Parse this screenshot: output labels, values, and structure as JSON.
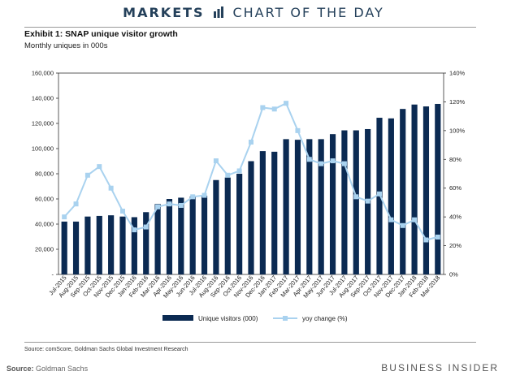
{
  "header": {
    "markets": "MARKETS",
    "chart_of_the_day": "CHART OF THE DAY"
  },
  "exhibit": {
    "title": "Exhibit 1: SNAP unique visitor growth",
    "subtitle": "Monthly uniques in 000s"
  },
  "source_line": "Source: comScore, Goldman Sachs Global Investment Research",
  "footer": {
    "source_label": "Source:",
    "source_name": "Goldman Sachs",
    "brand": "BUSINESS INSIDER"
  },
  "colors": {
    "bar": "#0b2a52",
    "line": "#a9d2ef",
    "banner": "#24405a"
  },
  "chart_data": {
    "type": "bar",
    "categories": [
      "Jul-2015",
      "Aug-2015",
      "Sep-2015",
      "Oct-2015",
      "Nov-2015",
      "Dec-2015",
      "Jan-2016",
      "Feb-2016",
      "Mar-2016",
      "Apr-2016",
      "May-2016",
      "Jun-2016",
      "Jul-2016",
      "Aug-2016",
      "Sep-2016",
      "Oct-2016",
      "Nov-2016",
      "Dec-2016",
      "Jan-2017",
      "Feb-2017",
      "Mar-2017",
      "Apr-2017",
      "May-2017",
      "Jun-2017",
      "Jul-2017",
      "Aug-2017",
      "Sep-2017",
      "Oct-2017",
      "Nov-2017",
      "Dec-2017",
      "Jan-2018",
      "Feb-2018",
      "Mar-2018"
    ],
    "series": [
      {
        "name": "Unique visitors (000)",
        "type": "bar",
        "axis": "left",
        "values": [
          42000,
          42000,
          46000,
          46500,
          47000,
          46000,
          45500,
          49500,
          56000,
          60000,
          61000,
          62000,
          62500,
          75000,
          77000,
          80000,
          90000,
          98000,
          97500,
          107500,
          107000,
          107500,
          107500,
          111500,
          114500,
          114500,
          115500,
          124500,
          124000,
          131500,
          135000,
          133500,
          135500
        ]
      },
      {
        "name": "yoy change (%)",
        "type": "line",
        "axis": "right",
        "values": [
          40,
          49,
          69,
          75,
          60,
          44,
          31,
          33,
          47,
          49,
          48,
          54,
          55,
          79,
          69,
          72,
          92,
          116,
          115,
          119,
          100,
          80,
          77,
          79,
          77,
          54,
          51,
          56,
          38,
          34,
          38,
          24,
          26
        ]
      }
    ],
    "yleft": {
      "min": 0,
      "max": 160000,
      "ticks": [
        "-",
        "20,000",
        "40,000",
        "60,000",
        "80,000",
        "100,000",
        "120,000",
        "140,000",
        "160,000"
      ]
    },
    "yright": {
      "min": 0,
      "max": 140,
      "ticks": [
        "0%",
        "20%",
        "40%",
        "60%",
        "80%",
        "100%",
        "120%",
        "140%"
      ]
    },
    "legend": [
      "Unique visitors (000)",
      "yoy change (%)"
    ],
    "legend_position": "bottom",
    "grid": false
  }
}
